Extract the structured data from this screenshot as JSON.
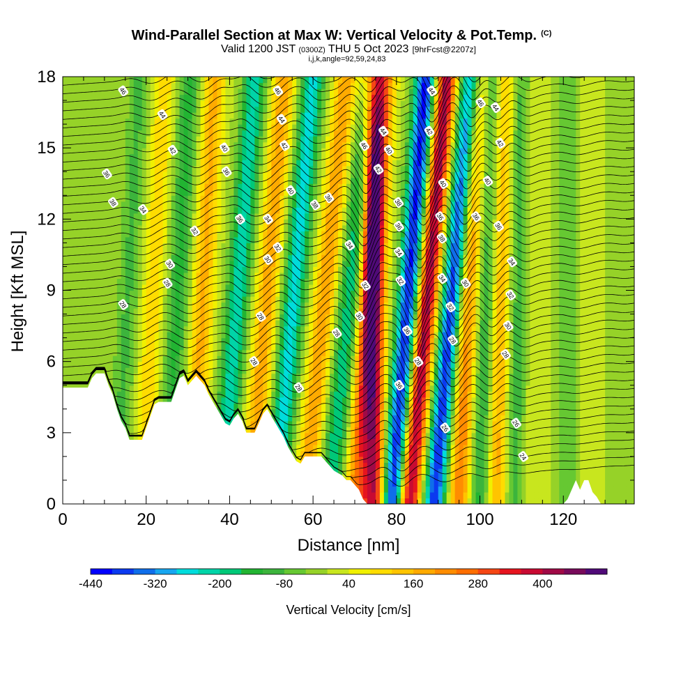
{
  "header": {
    "title": "Wind-Parallel Section at Max W: Vertical Velocity & Pot.Temp.",
    "title_mark": "(C)",
    "valid_main": "Valid 1200 JST",
    "valid_utc": "(0300Z)",
    "valid_date": "THU 5 Oct 2023",
    "forecast": "[9hrFcst@2207z]",
    "ijk": "i,j,k,angle=92,59,24,83"
  },
  "chart_data": {
    "type": "heatmap",
    "xlabel": "Distance [nm]",
    "ylabel": "Height [Kft MSL]",
    "xlim": [
      0,
      137
    ],
    "ylim": [
      0,
      18
    ],
    "x_ticks": [
      0,
      20,
      40,
      60,
      80,
      100,
      120
    ],
    "y_ticks": [
      0,
      3,
      6,
      9,
      12,
      15,
      18
    ],
    "colorbar": {
      "label": "Vertical Velocity [cm/s]",
      "tick_labels": [
        "-440",
        "-320",
        "-200",
        "-80",
        "40",
        "160",
        "280",
        "400"
      ],
      "levels": [
        -440,
        -400,
        -360,
        -320,
        -280,
        -240,
        -200,
        -160,
        -120,
        -80,
        -40,
        0,
        40,
        80,
        120,
        160,
        200,
        240,
        280,
        320,
        360,
        400,
        440,
        480
      ],
      "colors": [
        "#0000ff",
        "#0b3af0",
        "#0f6eea",
        "#17a6f0",
        "#00dcdc",
        "#00d4a8",
        "#00c878",
        "#22b432",
        "#3cb43c",
        "#66c832",
        "#96d228",
        "#c8e61e",
        "#f0f000",
        "#ffdc00",
        "#ffc400",
        "#ffaa00",
        "#ff8c00",
        "#ff6e00",
        "#f54614",
        "#e6141e",
        "#c80a32",
        "#a00a46",
        "#780a5a",
        "#500a78"
      ]
    },
    "w_bands": [
      {
        "x0": 13,
        "w": -90,
        "slope": 0.3
      },
      {
        "x0": 19,
        "w": 110,
        "slope": 0.3
      },
      {
        "x0": 25,
        "w": -130,
        "slope": 0.3
      },
      {
        "x0": 31,
        "w": 170,
        "slope": 0.3
      },
      {
        "x0": 38,
        "w": -230,
        "slope": 0.45
      },
      {
        "x0": 45,
        "w": 190,
        "slope": 0.45
      },
      {
        "x0": 51,
        "w": -260,
        "slope": 0.5
      },
      {
        "x0": 58,
        "w": 200,
        "slope": 0.55
      },
      {
        "x0": 64,
        "w": -200,
        "slope": 0.55
      },
      {
        "x0": 70,
        "w": 230,
        "slope": 0.4
      },
      {
        "x0": 74.5,
        "w": 400,
        "slope": 0.0
      },
      {
        "x0": 79,
        "w": -420,
        "slope": 0.45
      },
      {
        "x0": 83,
        "w": 430,
        "slope": 0.5
      },
      {
        "x0": 89,
        "w": -400,
        "slope": 0.5
      },
      {
        "x0": 95,
        "w": 240,
        "slope": 0.25
      },
      {
        "x0": 100,
        "w": -150,
        "slope": 0.2
      },
      {
        "x0": 104,
        "w": 190,
        "slope": 0.1
      },
      {
        "x0": 108,
        "w": -110,
        "slope": 0.1
      },
      {
        "x0": 113,
        "w": 40,
        "slope": 0.0
      },
      {
        "x0": 121,
        "w": -70,
        "slope": 0.0
      },
      {
        "x0": 127,
        "w": 30,
        "slope": 0.0
      },
      {
        "x0": 133,
        "w": -40,
        "slope": 0.0
      }
    ],
    "terrain_kft": [
      [
        0,
        4.9
      ],
      [
        6,
        4.9
      ],
      [
        7,
        5.3
      ],
      [
        8,
        5.5
      ],
      [
        10,
        5.5
      ],
      [
        11,
        5.0
      ],
      [
        12,
        4.6
      ],
      [
        13,
        4.0
      ],
      [
        14,
        3.5
      ],
      [
        15,
        3.2
      ],
      [
        16,
        2.7
      ],
      [
        19,
        2.7
      ],
      [
        20,
        3.2
      ],
      [
        21,
        3.7
      ],
      [
        22,
        4.2
      ],
      [
        23,
        4.3
      ],
      [
        26,
        4.3
      ],
      [
        27,
        4.8
      ],
      [
        28,
        5.3
      ],
      [
        29,
        5.4
      ],
      [
        30,
        5.0
      ],
      [
        32,
        5.4
      ],
      [
        34,
        5.0
      ],
      [
        35,
        4.6
      ],
      [
        36,
        4.3
      ],
      [
        37,
        4.0
      ],
      [
        38,
        3.7
      ],
      [
        39,
        3.4
      ],
      [
        40,
        3.3
      ],
      [
        41,
        3.6
      ],
      [
        42,
        3.8
      ],
      [
        43,
        3.5
      ],
      [
        44,
        3.0
      ],
      [
        46,
        3.0
      ],
      [
        47,
        3.4
      ],
      [
        48,
        3.8
      ],
      [
        49,
        4.0
      ],
      [
        50,
        3.7
      ],
      [
        51,
        3.4
      ],
      [
        52,
        3.1
      ],
      [
        53,
        2.8
      ],
      [
        54,
        2.4
      ],
      [
        55,
        2.1
      ],
      [
        56,
        1.8
      ],
      [
        57,
        1.7
      ],
      [
        58,
        2.0
      ],
      [
        62,
        2.0
      ],
      [
        63,
        1.8
      ],
      [
        64,
        1.6
      ],
      [
        65,
        1.4
      ],
      [
        66,
        1.3
      ],
      [
        67,
        1.2
      ],
      [
        68,
        1.0
      ],
      [
        69,
        1.0
      ],
      [
        70,
        0.8
      ],
      [
        71,
        0.6
      ],
      [
        72,
        0.2
      ],
      [
        73,
        0.0
      ],
      [
        120,
        0.0
      ],
      [
        121,
        0.2
      ],
      [
        122,
        0.6
      ],
      [
        123,
        1.0
      ],
      [
        124,
        0.6
      ],
      [
        125,
        1.0
      ],
      [
        126,
        1.0
      ],
      [
        127,
        0.5
      ],
      [
        128,
        0.3
      ],
      [
        129,
        0.0
      ],
      [
        137,
        0.0
      ]
    ],
    "theta_contours": [
      {
        "label": "24",
        "x": 110.4,
        "y": 2.0
      },
      {
        "label": "26",
        "x": 91.7,
        "y": 3.2
      },
      {
        "label": "26",
        "x": 108.7,
        "y": 3.4
      },
      {
        "label": "28",
        "x": 45.9,
        "y": 6.0
      },
      {
        "label": "28",
        "x": 56.6,
        "y": 4.9
      },
      {
        "label": "28",
        "x": 93.5,
        "y": 6.9
      },
      {
        "label": "28",
        "x": 85.2,
        "y": 6.0
      },
      {
        "label": "28",
        "x": 14.5,
        "y": 8.4
      },
      {
        "label": "28",
        "x": 47.5,
        "y": 7.9
      },
      {
        "label": "28",
        "x": 65.7,
        "y": 7.2
      },
      {
        "label": "28",
        "x": 106.2,
        "y": 6.3
      },
      {
        "label": "28",
        "x": 25.1,
        "y": 9.3
      },
      {
        "label": "30",
        "x": 71.2,
        "y": 7.9
      },
      {
        "label": "30",
        "x": 49.2,
        "y": 10.3
      },
      {
        "label": "30",
        "x": 25.7,
        "y": 10.1
      },
      {
        "label": "30",
        "x": 96.6,
        "y": 9.3
      },
      {
        "label": "30",
        "x": 106.8,
        "y": 7.5
      },
      {
        "label": "32",
        "x": 31.7,
        "y": 11.5
      },
      {
        "label": "32",
        "x": 72.6,
        "y": 9.2
      },
      {
        "label": "32",
        "x": 51.6,
        "y": 10.8
      },
      {
        "label": "32",
        "x": 81.0,
        "y": 9.4
      },
      {
        "label": "32",
        "x": 93.0,
        "y": 8.3
      },
      {
        "label": "32",
        "x": 107.4,
        "y": 8.8
      },
      {
        "label": "34",
        "x": 19.3,
        "y": 12.4
      },
      {
        "label": "34",
        "x": 49.2,
        "y": 12.0
      },
      {
        "label": "34",
        "x": 68.8,
        "y": 10.9
      },
      {
        "label": "34",
        "x": 80.6,
        "y": 10.6
      },
      {
        "label": "34",
        "x": 91.0,
        "y": 9.5
      },
      {
        "label": "34",
        "x": 107.7,
        "y": 10.2
      },
      {
        "label": "36",
        "x": 80.6,
        "y": 11.7
      },
      {
        "label": "36",
        "x": 42.5,
        "y": 12.0
      },
      {
        "label": "36",
        "x": 63.8,
        "y": 12.9
      },
      {
        "label": "36",
        "x": 90.5,
        "y": 12.1
      },
      {
        "label": "36",
        "x": 99.1,
        "y": 12.1
      },
      {
        "label": "36",
        "x": 104.5,
        "y": 11.7
      },
      {
        "label": "36",
        "x": 80.7,
        "y": 5.0
      },
      {
        "label": "36",
        "x": 82.6,
        "y": 7.3
      },
      {
        "label": "36",
        "x": 10.6,
        "y": 13.9
      },
      {
        "label": "36",
        "x": 39.3,
        "y": 14.0
      },
      {
        "label": "38",
        "x": 12.1,
        "y": 12.7
      },
      {
        "label": "38",
        "x": 60.5,
        "y": 12.6
      },
      {
        "label": "38",
        "x": 80.5,
        "y": 12.7
      },
      {
        "label": "38",
        "x": 90.9,
        "y": 11.2
      },
      {
        "label": "40",
        "x": 38.8,
        "y": 15.0
      },
      {
        "label": "40",
        "x": 54.7,
        "y": 13.2
      },
      {
        "label": "40",
        "x": 78.2,
        "y": 14.9
      },
      {
        "label": "40",
        "x": 91.2,
        "y": 13.5
      },
      {
        "label": "40",
        "x": 101.9,
        "y": 13.6
      },
      {
        "label": "42",
        "x": 26.4,
        "y": 14.9
      },
      {
        "label": "42",
        "x": 53.2,
        "y": 15.1
      },
      {
        "label": "42",
        "x": 75.7,
        "y": 14.1
      },
      {
        "label": "42",
        "x": 87.9,
        "y": 15.7
      },
      {
        "label": "42",
        "x": 104.9,
        "y": 15.2
      },
      {
        "label": "44",
        "x": 23.9,
        "y": 16.4
      },
      {
        "label": "44",
        "x": 52.5,
        "y": 16.2
      },
      {
        "label": "44",
        "x": 76.9,
        "y": 15.7
      },
      {
        "label": "44",
        "x": 88.5,
        "y": 17.4
      },
      {
        "label": "44",
        "x": 103.8,
        "y": 16.7
      },
      {
        "label": "46",
        "x": 14.5,
        "y": 17.4
      },
      {
        "label": "46",
        "x": 51.6,
        "y": 17.4
      },
      {
        "label": "46",
        "x": 72.3,
        "y": 15.1
      },
      {
        "label": "46",
        "x": 100.2,
        "y": 16.9
      }
    ]
  }
}
